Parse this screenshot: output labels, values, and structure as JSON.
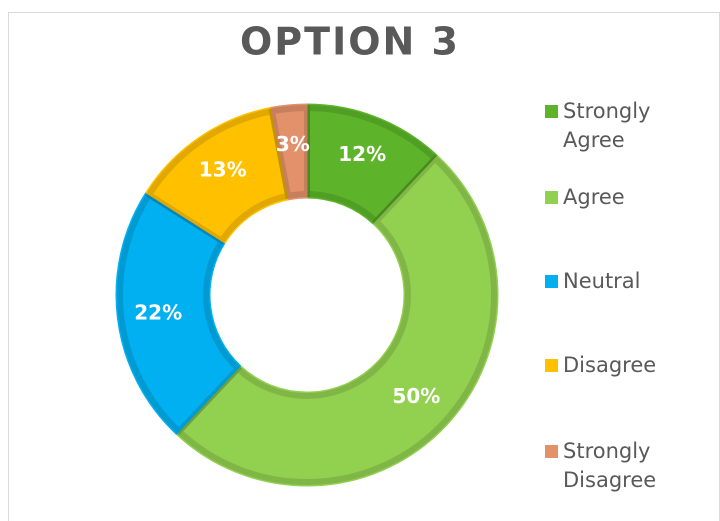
{
  "chart_data": {
    "type": "donut",
    "title": "OPTION 3",
    "categories": [
      "Strongly Agree",
      "Agree",
      "Neutral",
      "Disagree",
      "Strongly Disagree"
    ],
    "values": [
      12,
      50,
      22,
      13,
      3
    ],
    "value_labels": [
      "12%",
      "50%",
      "22%",
      "13%",
      "3%"
    ],
    "colors": [
      "#5db42a",
      "#92d050",
      "#00b0f0",
      "#ffc000",
      "#e3916a"
    ],
    "legend": "right"
  }
}
